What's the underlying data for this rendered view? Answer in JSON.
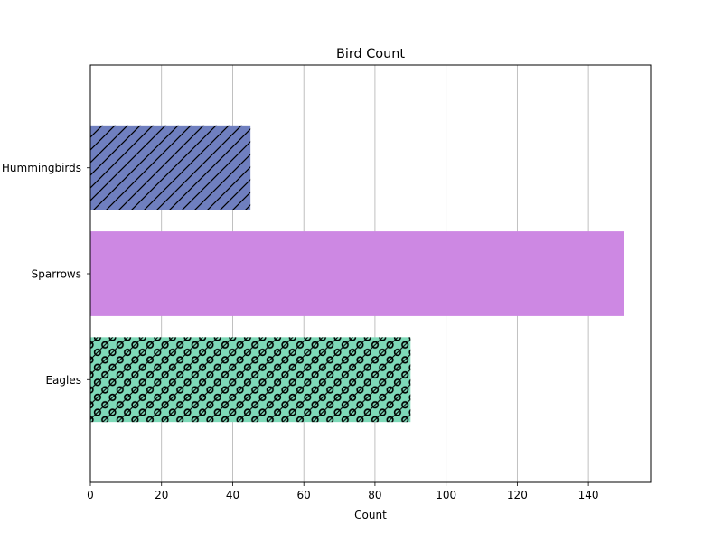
{
  "chart_data": {
    "type": "bar",
    "orientation": "horizontal",
    "title": "Bird Count",
    "xlabel": "Count",
    "ylabel": "",
    "categories": [
      "Hummingbirds",
      "Sparrows",
      "Eagles"
    ],
    "values": [
      45,
      150,
      90
    ],
    "colors": [
      "#6f7fbf",
      "#cd88e3",
      "#7ed9b8"
    ],
    "hatches": [
      "diagonal-lines",
      "none",
      "diagonal-lines-and-circles"
    ],
    "xlim": [
      0,
      157.5
    ],
    "xticks": [
      0,
      20,
      40,
      60,
      80,
      100,
      120,
      140
    ],
    "grid": "x-major",
    "legend": "none"
  }
}
